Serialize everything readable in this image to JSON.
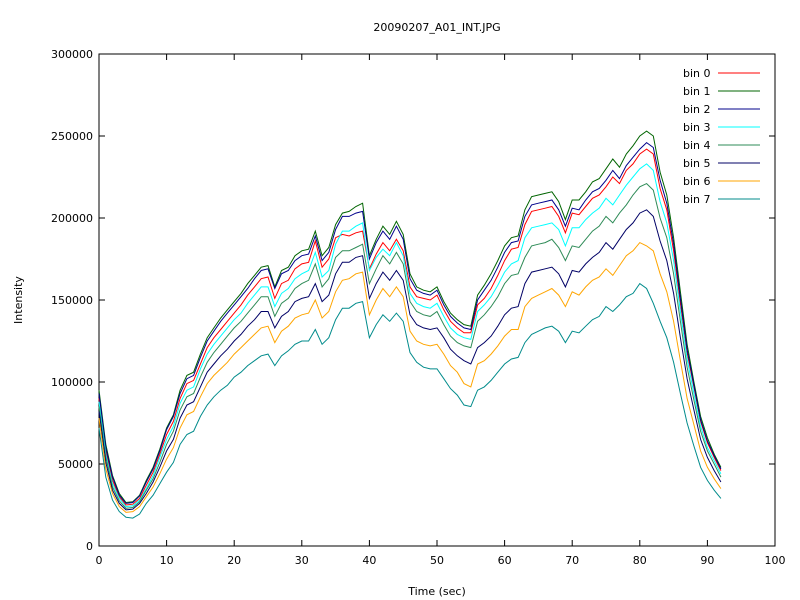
{
  "chart_data": {
    "type": "line",
    "title": "20090207_A01_INT.JPG",
    "xlabel": "Time (sec)",
    "ylabel": "Intensity",
    "xlim": [
      0,
      100
    ],
    "ylim": [
      0,
      300000
    ],
    "xticks": [
      0,
      10,
      20,
      30,
      40,
      50,
      60,
      70,
      80,
      90,
      100
    ],
    "yticks": [
      0,
      50000,
      100000,
      150000,
      200000,
      250000,
      300000
    ],
    "grid": false,
    "legend_position": "top-right",
    "x": [
      0,
      1,
      2,
      3,
      4,
      5,
      6,
      7,
      8,
      9,
      10,
      11,
      12,
      13,
      14,
      15,
      16,
      17,
      18,
      19,
      20,
      21,
      22,
      23,
      24,
      25,
      26,
      27,
      28,
      29,
      30,
      31,
      32,
      33,
      34,
      35,
      36,
      37,
      38,
      39,
      40,
      41,
      42,
      43,
      44,
      45,
      46,
      47,
      48,
      49,
      50,
      51,
      52,
      53,
      54,
      55,
      56,
      57,
      58,
      59,
      60,
      61,
      62,
      63,
      64,
      65,
      66,
      67,
      68,
      69,
      70,
      71,
      72,
      73,
      74,
      75,
      76,
      77,
      78,
      79,
      80,
      81,
      82,
      83,
      84,
      85,
      86,
      87,
      88,
      89,
      90,
      91,
      92
    ],
    "series": [
      {
        "name": "bin 0",
        "color": "#ff0000",
        "values": [
          90000,
          58000,
          40000,
          30000,
          25000,
          25500,
          29000,
          37000,
          45000,
          56000,
          68000,
          76000,
          90000,
          99000,
          101000,
          111000,
          121000,
          127000,
          132000,
          137000,
          142000,
          147000,
          153000,
          158000,
          163000,
          164000,
          151000,
          160000,
          162000,
          169000,
          172000,
          173000,
          186000,
          170000,
          175000,
          188000,
          190000,
          189000,
          191000,
          192000,
          169000,
          178000,
          185000,
          180000,
          187000,
          180000,
          158000,
          152000,
          151000,
          150000,
          153000,
          144000,
          137000,
          133000,
          130000,
          130000,
          147000,
          151000,
          157000,
          165000,
          174000,
          181000,
          182000,
          196000,
          204000,
          205000,
          206000,
          207000,
          201000,
          191000,
          203000,
          202000,
          207000,
          212000,
          214000,
          219000,
          225000,
          221000,
          229000,
          233000,
          239000,
          242000,
          239000,
          218000,
          205000,
          180000,
          148000,
          118000,
          97000,
          76000,
          63000,
          54000,
          46000
        ]
      },
      {
        "name": "bin 1",
        "color": "#006400",
        "values": [
          95000,
          62000,
          43000,
          32000,
          26500,
          27000,
          31000,
          40000,
          48000,
          59000,
          72000,
          80000,
          95000,
          104000,
          106000,
          117000,
          127000,
          133000,
          139000,
          144000,
          149000,
          154000,
          160000,
          165000,
          170000,
          171000,
          158000,
          168000,
          170000,
          177000,
          180000,
          181000,
          192000,
          177000,
          182000,
          196000,
          203000,
          204000,
          207000,
          209000,
          177000,
          187000,
          195000,
          190000,
          198000,
          190000,
          166000,
          158000,
          156000,
          155000,
          158000,
          149000,
          142000,
          138000,
          135000,
          134000,
          153000,
          159000,
          166000,
          174000,
          183000,
          188000,
          189000,
          205000,
          213000,
          214000,
          215000,
          216000,
          210000,
          199000,
          211000,
          211000,
          216000,
          222000,
          224000,
          230000,
          236000,
          231000,
          239000,
          244000,
          250000,
          253000,
          250000,
          228000,
          214000,
          188000,
          155000,
          123000,
          100000,
          79000,
          66000,
          56000,
          48000
        ]
      },
      {
        "name": "bin 2",
        "color": "#00008b",
        "values": [
          93000,
          60000,
          42000,
          31000,
          26000,
          26500,
          30500,
          39000,
          47000,
          58000,
          71000,
          79000,
          93000,
          102000,
          104000,
          115000,
          125000,
          131000,
          137000,
          142000,
          147000,
          152000,
          157000,
          163000,
          168000,
          169000,
          157000,
          166000,
          168000,
          174000,
          177000,
          178000,
          189000,
          174000,
          179000,
          193000,
          201000,
          201000,
          203000,
          204000,
          175000,
          185000,
          192000,
          187000,
          195000,
          187000,
          163000,
          156000,
          154000,
          153000,
          156000,
          147000,
          140000,
          136000,
          133000,
          132000,
          150000,
          156000,
          162000,
          170000,
          179000,
          185000,
          186000,
          201000,
          208000,
          209000,
          210000,
          211000,
          205000,
          195000,
          206000,
          205000,
          211000,
          216000,
          218000,
          223000,
          229000,
          224000,
          232000,
          237000,
          242000,
          246000,
          243000,
          223000,
          209000,
          184000,
          151000,
          120000,
          98000,
          77000,
          64000,
          55000,
          47000
        ]
      },
      {
        "name": "bin 3",
        "color": "#00ffff",
        "values": [
          88000,
          56000,
          38000,
          29000,
          24000,
          24500,
          28000,
          35000,
          43000,
          54000,
          65000,
          73000,
          87000,
          95000,
          97000,
          108000,
          117000,
          123000,
          128000,
          133000,
          138000,
          142000,
          148000,
          153000,
          158000,
          158000,
          146000,
          154000,
          157000,
          163000,
          166000,
          168000,
          179000,
          164000,
          168000,
          184000,
          192000,
          192000,
          195000,
          197000,
          168000,
          176000,
          181000,
          177000,
          185000,
          177000,
          154000,
          148000,
          146000,
          145000,
          148000,
          140000,
          133000,
          129000,
          127000,
          126000,
          143000,
          147000,
          152000,
          159000,
          167000,
          172000,
          174000,
          188000,
          194000,
          195000,
          196000,
          197000,
          193000,
          183000,
          194000,
          194000,
          199000,
          203000,
          206000,
          212000,
          208000,
          214000,
          220000,
          225000,
          230000,
          233000,
          229000,
          210000,
          197000,
          174000,
          143000,
          114000,
          93000,
          73000,
          60000,
          52000,
          44000
        ]
      },
      {
        "name": "bin 4",
        "color": "#2e8b57",
        "values": [
          85000,
          54000,
          36000,
          27500,
          23000,
          23500,
          27000,
          34000,
          41000,
          51000,
          62000,
          70000,
          83000,
          91000,
          93000,
          103000,
          112000,
          118000,
          123000,
          128000,
          133000,
          137000,
          142000,
          147000,
          152000,
          152000,
          140000,
          148000,
          151000,
          157000,
          160000,
          162000,
          172000,
          158000,
          163000,
          176000,
          180000,
          180000,
          182000,
          184000,
          160000,
          169000,
          177000,
          172000,
          179000,
          172000,
          149000,
          143000,
          141000,
          140000,
          143000,
          135000,
          128000,
          124000,
          122000,
          121000,
          137000,
          141000,
          146000,
          152000,
          160000,
          165000,
          166000,
          176000,
          183000,
          184000,
          185000,
          187000,
          182000,
          174000,
          183000,
          182000,
          187000,
          192000,
          195000,
          201000,
          197000,
          203000,
          208000,
          214000,
          219000,
          221000,
          217000,
          200000,
          188000,
          166000,
          137000,
          109000,
          89000,
          70000,
          58000,
          50000,
          42000
        ]
      },
      {
        "name": "bin 5",
        "color": "#000066",
        "values": [
          82000,
          51000,
          34000,
          26000,
          22000,
          22500,
          26000,
          32000,
          39000,
          48000,
          58000,
          65000,
          78000,
          86000,
          88000,
          97000,
          106000,
          111000,
          116000,
          120000,
          125000,
          129000,
          134000,
          138000,
          143000,
          143000,
          133000,
          140000,
          143000,
          149000,
          151000,
          152000,
          160000,
          149000,
          153000,
          166000,
          173000,
          173000,
          176000,
          177000,
          151000,
          160000,
          167000,
          162000,
          168000,
          162000,
          141000,
          135000,
          133000,
          132000,
          133000,
          127000,
          120000,
          116000,
          113000,
          111000,
          121000,
          124000,
          128000,
          134000,
          141000,
          145000,
          146000,
          160000,
          167000,
          168000,
          169000,
          170000,
          166000,
          158000,
          168000,
          167000,
          172000,
          176000,
          179000,
          185000,
          181000,
          187000,
          193000,
          197000,
          203000,
          205000,
          201000,
          186000,
          174000,
          154000,
          127000,
          102000,
          83000,
          65000,
          54000,
          46000,
          39000
        ]
      },
      {
        "name": "bin 6",
        "color": "#ffa500",
        "values": [
          78000,
          47000,
          32000,
          24000,
          20500,
          21000,
          24000,
          30000,
          36000,
          44000,
          53000,
          60000,
          72000,
          80000,
          82000,
          91000,
          99000,
          104000,
          108000,
          112000,
          117000,
          121000,
          125000,
          129000,
          133000,
          134000,
          124000,
          131000,
          134000,
          139000,
          141000,
          142000,
          150000,
          139000,
          143000,
          155000,
          162000,
          163000,
          166000,
          167000,
          141000,
          150000,
          157000,
          152000,
          158000,
          152000,
          131000,
          125000,
          123000,
          122000,
          123000,
          117000,
          110000,
          106000,
          99000,
          97000,
          111000,
          113000,
          117000,
          122000,
          128000,
          132000,
          132000,
          146000,
          151000,
          153000,
          155000,
          157000,
          153000,
          146000,
          155000,
          153000,
          158000,
          162000,
          164000,
          169000,
          165000,
          171000,
          177000,
          180000,
          185000,
          183000,
          180000,
          166000,
          155000,
          137000,
          113000,
          90000,
          74000,
          58000,
          48000,
          41000,
          35000
        ]
      },
      {
        "name": "bin 7",
        "color": "#008b8b",
        "values": [
          72000,
          42000,
          28000,
          21000,
          17500,
          17000,
          19500,
          26000,
          31000,
          38000,
          45000,
          51000,
          62000,
          68000,
          70000,
          79000,
          86000,
          91000,
          95000,
          98000,
          103000,
          106000,
          110000,
          113000,
          116000,
          117000,
          110000,
          116000,
          119000,
          123000,
          125000,
          125000,
          132000,
          123000,
          127000,
          138000,
          145000,
          145000,
          148000,
          149000,
          127000,
          135000,
          141000,
          137000,
          142000,
          137000,
          118000,
          112000,
          109000,
          108000,
          108000,
          102000,
          96000,
          92000,
          86000,
          85000,
          95000,
          97000,
          101000,
          106000,
          111000,
          114000,
          115000,
          124000,
          129000,
          131000,
          133000,
          134000,
          131000,
          124000,
          131000,
          130000,
          134000,
          138000,
          140000,
          146000,
          143000,
          147000,
          152000,
          154000,
          160000,
          157000,
          148000,
          137000,
          127000,
          112000,
          93000,
          75000,
          61000,
          48000,
          40000,
          34000,
          29000
        ]
      }
    ]
  }
}
